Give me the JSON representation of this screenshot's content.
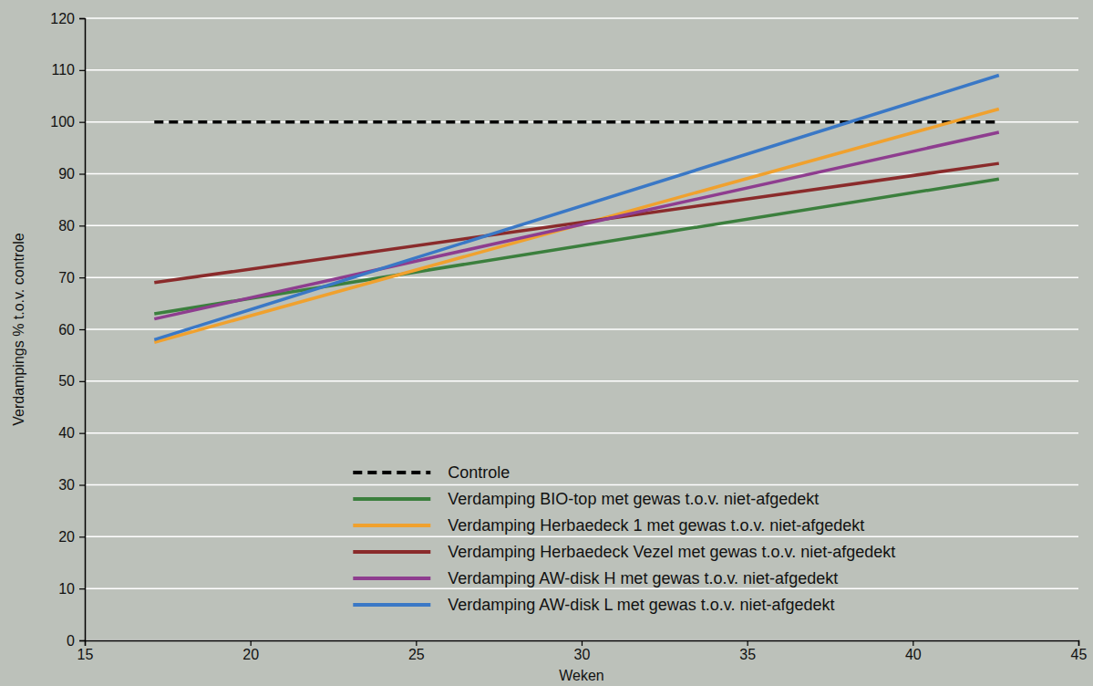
{
  "chart_data": {
    "type": "line",
    "x_label": "Weken",
    "y_label": "Verdampings % t.o.v. controle",
    "x": [
      17.1,
      42.6
    ],
    "xlim": [
      15,
      45
    ],
    "xticks": [
      15,
      20,
      25,
      30,
      35,
      40,
      45
    ],
    "ylim": [
      0,
      120
    ],
    "yticks": [
      0,
      10,
      20,
      30,
      40,
      50,
      60,
      70,
      80,
      90,
      100,
      110,
      120
    ],
    "grid": true,
    "legend": "bottom",
    "series": [
      {
        "name": "Controle",
        "color": "#000000",
        "line_style": "dashed",
        "values": [
          100,
          100
        ]
      },
      {
        "name": "Verdamping BIO-top met gewas t.o.v. niet-afgedekt",
        "color": "#3b7f3d",
        "line_style": "solid",
        "values": [
          63,
          89
        ]
      },
      {
        "name": "Verdamping Herbaedeck 1 met gewas t.o.v. niet-afgedekt",
        "color": "#f0a12e",
        "line_style": "solid",
        "values": [
          57.5,
          102.5
        ]
      },
      {
        "name": "Verdamping Herbaedeck Vezel met gewas t.o.v. niet-afgedekt",
        "color": "#8a2b2b",
        "line_style": "solid",
        "values": [
          69,
          92
        ]
      },
      {
        "name": "Verdamping AW-disk H met gewas t.o.v. niet-afgedekt",
        "color": "#8e3d8f",
        "line_style": "solid",
        "values": [
          62,
          98
        ]
      },
      {
        "name": "Verdamping AW-disk L met gewas t.o.v. niet-afgedekt",
        "color": "#3a78c6",
        "line_style": "solid",
        "values": [
          58,
          109
        ]
      }
    ]
  }
}
